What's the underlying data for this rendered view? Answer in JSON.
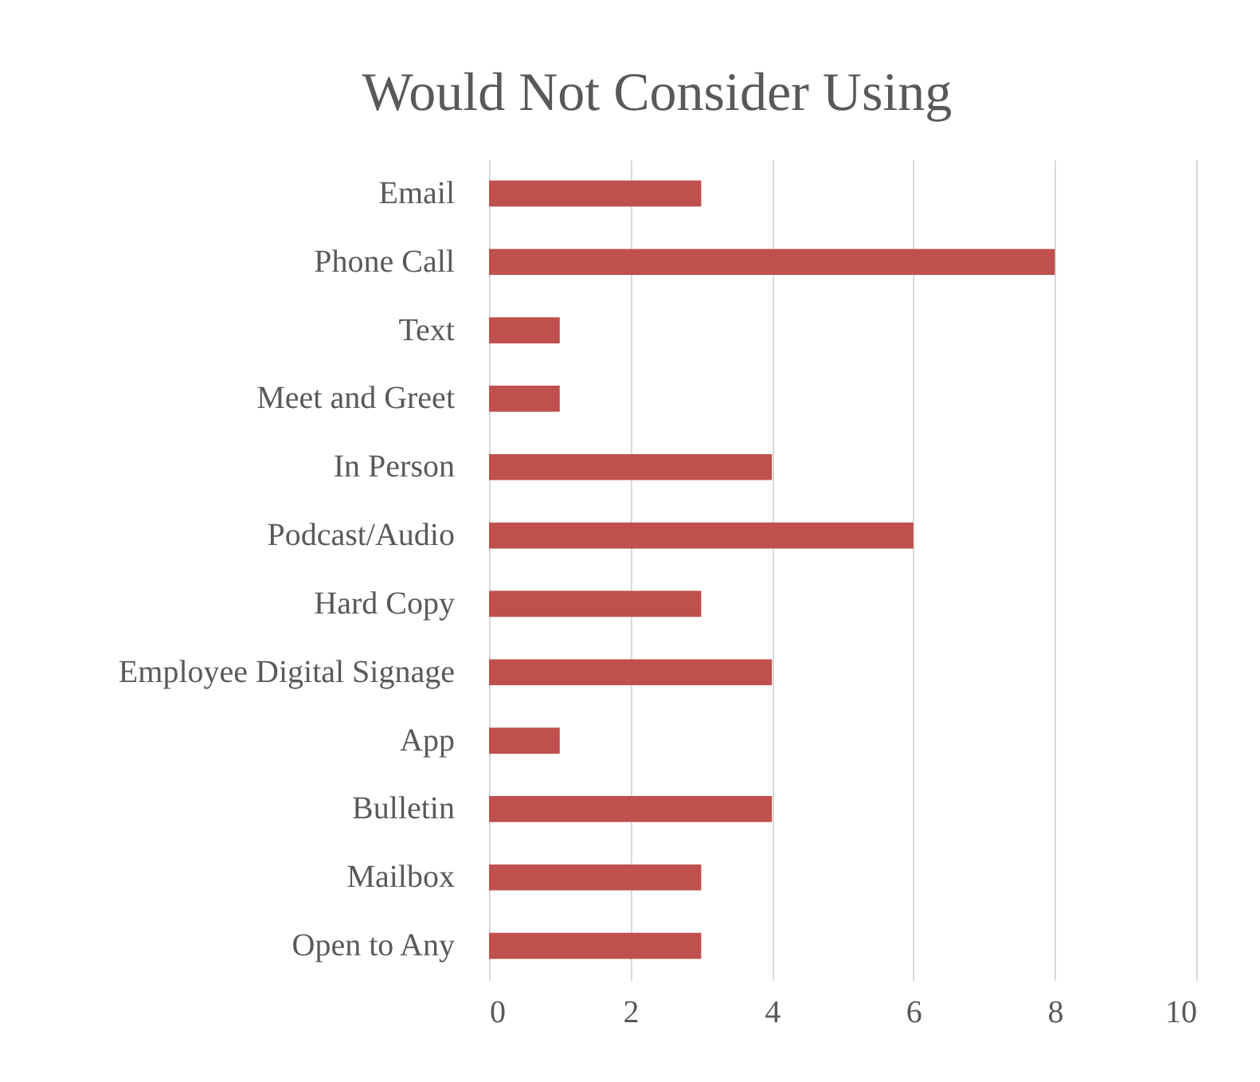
{
  "chart_data": {
    "type": "bar",
    "orientation": "horizontal",
    "title": "Would Not Consider Using",
    "categories": [
      "Email",
      "Phone Call",
      "Text",
      "Meet and Greet",
      "In Person",
      "Podcast/Audio",
      "Hard Copy",
      "Employee Digital Signage",
      "App",
      "Bulletin",
      "Mailbox",
      "Open to Any"
    ],
    "values": [
      3,
      8,
      1,
      1,
      4,
      6,
      3,
      4,
      1,
      4,
      3,
      3
    ],
    "color": "#c0504d",
    "xlim": [
      0,
      10
    ],
    "xticks": [
      0,
      2,
      4,
      6,
      8,
      10
    ],
    "grid": "x"
  }
}
